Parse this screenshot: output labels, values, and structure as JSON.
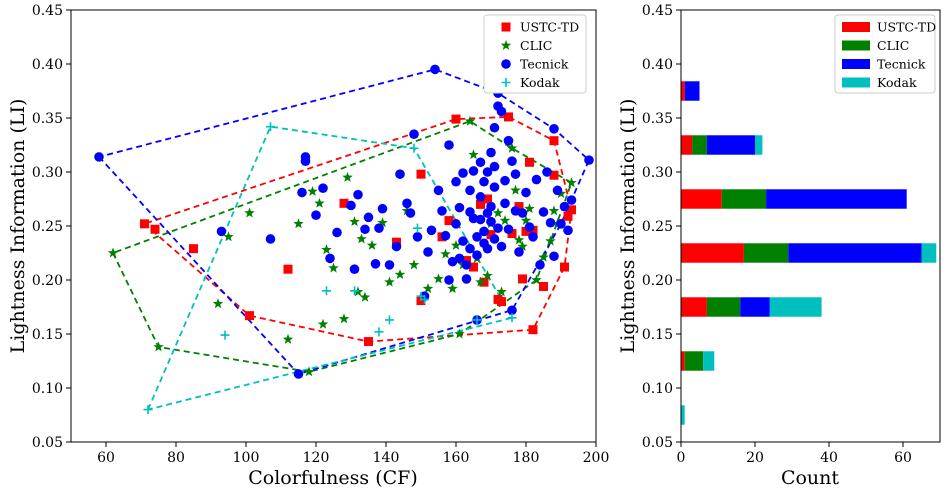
{
  "chart_data": [
    {
      "type": "scatter",
      "xlabel": "Colorfulness (CF)",
      "ylabel": "Lightness Information (LI)",
      "xlim": [
        50,
        200
      ],
      "ylim": [
        0.05,
        0.45
      ],
      "xticks": [
        "60",
        "80",
        "100",
        "120",
        "140",
        "160",
        "180",
        "200"
      ],
      "yticks": [
        "0.05",
        "0.10",
        "0.15",
        "0.20",
        "0.25",
        "0.30",
        "0.35",
        "0.40",
        "0.45"
      ],
      "legend_position": "top-right",
      "series": [
        {
          "name": "USTC-TD",
          "marker": "square",
          "color": "#ff0000",
          "hull": [
            [
              71,
              0.252
            ],
            [
              101,
              0.167
            ],
            [
              135,
              0.143
            ],
            [
              182,
              0.154
            ],
            [
              191,
              0.212
            ],
            [
              193,
              0.265
            ],
            [
              188,
              0.329
            ],
            [
              175,
              0.351
            ],
            [
              160,
              0.349
            ],
            [
              71,
              0.252
            ]
          ],
          "points": [
            [
              71,
              0.252
            ],
            [
              74,
              0.247
            ],
            [
              85,
              0.229
            ],
            [
              101,
              0.167
            ],
            [
              112,
              0.21
            ],
            [
              128,
              0.271
            ],
            [
              135,
              0.143
            ],
            [
              143,
              0.235
            ],
            [
              150,
              0.298
            ],
            [
              150,
              0.181
            ],
            [
              156,
              0.24
            ],
            [
              158,
              0.255
            ],
            [
              160,
              0.349
            ],
            [
              163,
              0.218
            ],
            [
              165,
              0.212
            ],
            [
              167,
              0.27
            ],
            [
              168,
              0.198
            ],
            [
              169,
              0.275
            ],
            [
              170,
              0.242
            ],
            [
              172,
              0.182
            ],
            [
              173,
              0.18
            ],
            [
              175,
              0.351
            ],
            [
              176,
              0.243
            ],
            [
              178,
              0.268
            ],
            [
              179,
              0.201
            ],
            [
              180,
              0.245
            ],
            [
              181,
              0.309
            ],
            [
              182,
              0.154
            ],
            [
              182,
              0.246
            ],
            [
              185,
              0.194
            ],
            [
              188,
              0.297
            ],
            [
              188,
              0.329
            ],
            [
              191,
              0.212
            ],
            [
              192,
              0.259
            ],
            [
              193,
              0.265
            ]
          ]
        },
        {
          "name": "CLIC",
          "marker": "star",
          "color": "#008000",
          "hull": [
            [
              62,
              0.225
            ],
            [
              75,
              0.138
            ],
            [
              118,
              0.115
            ],
            [
              161,
              0.15
            ],
            [
              183,
              0.2
            ],
            [
              193,
              0.29
            ],
            [
              176,
              0.322
            ],
            [
              164,
              0.347
            ],
            [
              62,
              0.225
            ]
          ],
          "points": [
            [
              62,
              0.225
            ],
            [
              75,
              0.138
            ],
            [
              92,
              0.178
            ],
            [
              95,
              0.24
            ],
            [
              101,
              0.262
            ],
            [
              112,
              0.145
            ],
            [
              115,
              0.252
            ],
            [
              118,
              0.115
            ],
            [
              119,
              0.282
            ],
            [
              121,
              0.271
            ],
            [
              122,
              0.159
            ],
            [
              123,
              0.228
            ],
            [
              125,
              0.211
            ],
            [
              128,
              0.164
            ],
            [
              129,
              0.295
            ],
            [
              131,
              0.254
            ],
            [
              132,
              0.189
            ],
            [
              133,
              0.238
            ],
            [
              134,
              0.184
            ],
            [
              136,
              0.232
            ],
            [
              139,
              0.253
            ],
            [
              141,
              0.198
            ],
            [
              144,
              0.205
            ],
            [
              146,
              0.264
            ],
            [
              148,
              0.214
            ],
            [
              152,
              0.192
            ],
            [
              155,
              0.201
            ],
            [
              157,
              0.224
            ],
            [
              159,
              0.192
            ],
            [
              160,
              0.232
            ],
            [
              161,
              0.15
            ],
            [
              162,
              0.214
            ],
            [
              164,
              0.347
            ],
            [
              165,
              0.316
            ],
            [
              166,
              0.22
            ],
            [
              167,
              0.198
            ],
            [
              168,
              0.245
            ],
            [
              169,
              0.204
            ],
            [
              170,
              0.252
            ],
            [
              172,
              0.262
            ],
            [
              173,
              0.189
            ],
            [
              174,
              0.255
            ],
            [
              175,
              0.328
            ],
            [
              176,
              0.322
            ],
            [
              177,
              0.283
            ],
            [
              178,
              0.237
            ],
            [
              179,
              0.231
            ],
            [
              180,
              0.255
            ],
            [
              181,
              0.266
            ],
            [
              183,
              0.2
            ],
            [
              185,
              0.221
            ],
            [
              187,
              0.236
            ],
            [
              188,
              0.264
            ],
            [
              189,
              0.252
            ],
            [
              190,
              0.28
            ],
            [
              193,
              0.29
            ]
          ]
        },
        {
          "name": "Tecnick",
          "marker": "circle",
          "color": "#0000ff",
          "hull": [
            [
              58,
              0.314
            ],
            [
              115,
              0.113
            ],
            [
              176,
              0.172
            ],
            [
              190,
              0.252
            ],
            [
              198,
              0.311
            ],
            [
              188,
              0.34
            ],
            [
              172,
              0.373
            ],
            [
              154,
              0.395
            ],
            [
              58,
              0.314
            ]
          ],
          "points": [
            [
              58,
              0.314
            ],
            [
              93,
              0.245
            ],
            [
              107,
              0.238
            ],
            [
              115,
              0.113
            ],
            [
              116,
              0.281
            ],
            [
              117,
              0.31
            ],
            [
              117,
              0.314
            ],
            [
              120,
              0.26
            ],
            [
              122,
              0.285
            ],
            [
              124,
              0.22
            ],
            [
              126,
              0.244
            ],
            [
              130,
              0.269
            ],
            [
              131,
              0.21
            ],
            [
              132,
              0.279
            ],
            [
              134,
              0.247
            ],
            [
              135,
              0.258
            ],
            [
              137,
              0.215
            ],
            [
              138,
              0.248
            ],
            [
              139,
              0.266
            ],
            [
              141,
              0.214
            ],
            [
              143,
              0.231
            ],
            [
              144,
              0.298
            ],
            [
              146,
              0.271
            ],
            [
              147,
              0.262
            ],
            [
              148,
              0.335
            ],
            [
              149,
              0.24
            ],
            [
              151,
              0.185
            ],
            [
              152,
              0.226
            ],
            [
              153,
              0.246
            ],
            [
              154,
              0.395
            ],
            [
              155,
              0.283
            ],
            [
              156,
              0.264
            ],
            [
              157,
              0.241
            ],
            [
              158,
              0.325
            ],
            [
              158,
              0.2
            ],
            [
              159,
              0.217
            ],
            [
              160,
              0.291
            ],
            [
              160,
              0.252
            ],
            [
              161,
              0.267
            ],
            [
              161,
              0.22
            ],
            [
              162,
              0.299
            ],
            [
              162,
              0.236
            ],
            [
              163,
              0.214
            ],
            [
              163,
              0.201
            ],
            [
              164,
              0.263
            ],
            [
              164,
              0.283
            ],
            [
              164,
              0.229
            ],
            [
              165,
              0.301
            ],
            [
              165,
              0.257
            ],
            [
              166,
              0.24
            ],
            [
              166,
              0.223
            ],
            [
              166,
              0.163
            ],
            [
              167,
              0.309
            ],
            [
              167,
              0.277
            ],
            [
              167,
              0.256
            ],
            [
              168,
              0.291
            ],
            [
              168,
              0.245
            ],
            [
              168,
              0.234
            ],
            [
              169,
              0.3
            ],
            [
              169,
              0.262
            ],
            [
              169,
              0.229
            ],
            [
              170,
              0.318
            ],
            [
              170,
              0.268
            ],
            [
              170,
              0.254
            ],
            [
              171,
              0.341
            ],
            [
              171,
              0.305
            ],
            [
              171,
              0.286
            ],
            [
              171,
              0.238
            ],
            [
              172,
              0.373
            ],
            [
              172,
              0.361
            ],
            [
              172,
              0.248
            ],
            [
              173,
              0.356
            ],
            [
              173,
              0.231
            ],
            [
              174,
              0.292
            ],
            [
              174,
              0.271
            ],
            [
              175,
              0.247
            ],
            [
              175,
              0.329
            ],
            [
              176,
              0.31
            ],
            [
              176,
              0.172
            ],
            [
              177,
              0.298
            ],
            [
              177,
              0.264
            ],
            [
              178,
              0.226
            ],
            [
              179,
              0.262
            ],
            [
              180,
              0.281
            ],
            [
              181,
              0.249
            ],
            [
              182,
              0.24
            ],
            [
              183,
              0.293
            ],
            [
              184,
              0.214
            ],
            [
              185,
              0.263
            ],
            [
              186,
              0.3
            ],
            [
              187,
              0.253
            ],
            [
              188,
              0.34
            ],
            [
              188,
              0.222
            ],
            [
              189,
              0.283
            ],
            [
              190,
              0.252
            ],
            [
              191,
              0.268
            ],
            [
              192,
              0.246
            ],
            [
              193,
              0.274
            ],
            [
              198,
              0.311
            ]
          ]
        },
        {
          "name": "Kodak",
          "marker": "plus",
          "color": "#00bfbf",
          "hull": [
            [
              72,
              0.08
            ],
            [
              107,
              0.342
            ],
            [
              148,
              0.322
            ],
            [
              176,
              0.165
            ],
            [
              72,
              0.08
            ]
          ],
          "points": [
            [
              72,
              0.08
            ],
            [
              94,
              0.149
            ],
            [
              107,
              0.342
            ],
            [
              123,
              0.19
            ],
            [
              131,
              0.19
            ],
            [
              138,
              0.152
            ],
            [
              141,
              0.163
            ],
            [
              149,
              0.248
            ],
            [
              150,
              0.185
            ],
            [
              151,
              0.182
            ],
            [
              148,
              0.322
            ],
            [
              166,
              0.163
            ],
            [
              176,
              0.165
            ]
          ]
        }
      ]
    },
    {
      "type": "bar",
      "orientation": "horizontal",
      "stacked": true,
      "xlabel": "Count",
      "ylabel": "Lightness Information (LI)",
      "xlim": [
        0,
        70
      ],
      "ylim": [
        0.05,
        0.45
      ],
      "xticks": [
        "0",
        "20",
        "40",
        "60"
      ],
      "yticks": [
        "0.05",
        "0.10",
        "0.15",
        "0.20",
        "0.25",
        "0.30",
        "0.35",
        "0.40",
        "0.45"
      ],
      "legend_position": "top-right",
      "bin_centers": [
        0.075,
        0.125,
        0.175,
        0.225,
        0.275,
        0.325,
        0.375
      ],
      "bin_height": 0.018,
      "series": [
        {
          "name": "USTC-TD",
          "color": "#ff0000",
          "values": [
            0,
            1,
            7,
            17,
            11,
            3,
            1
          ]
        },
        {
          "name": "CLIC",
          "color": "#008000",
          "values": [
            0,
            5,
            9,
            12,
            12,
            4,
            0
          ]
        },
        {
          "name": "Tecnick",
          "color": "#0000ff",
          "values": [
            0,
            0,
            8,
            36,
            38,
            13,
            4
          ]
        },
        {
          "name": "Kodak",
          "color": "#00bfbf",
          "values": [
            1,
            3,
            14,
            4,
            0,
            2,
            0
          ]
        }
      ]
    }
  ]
}
